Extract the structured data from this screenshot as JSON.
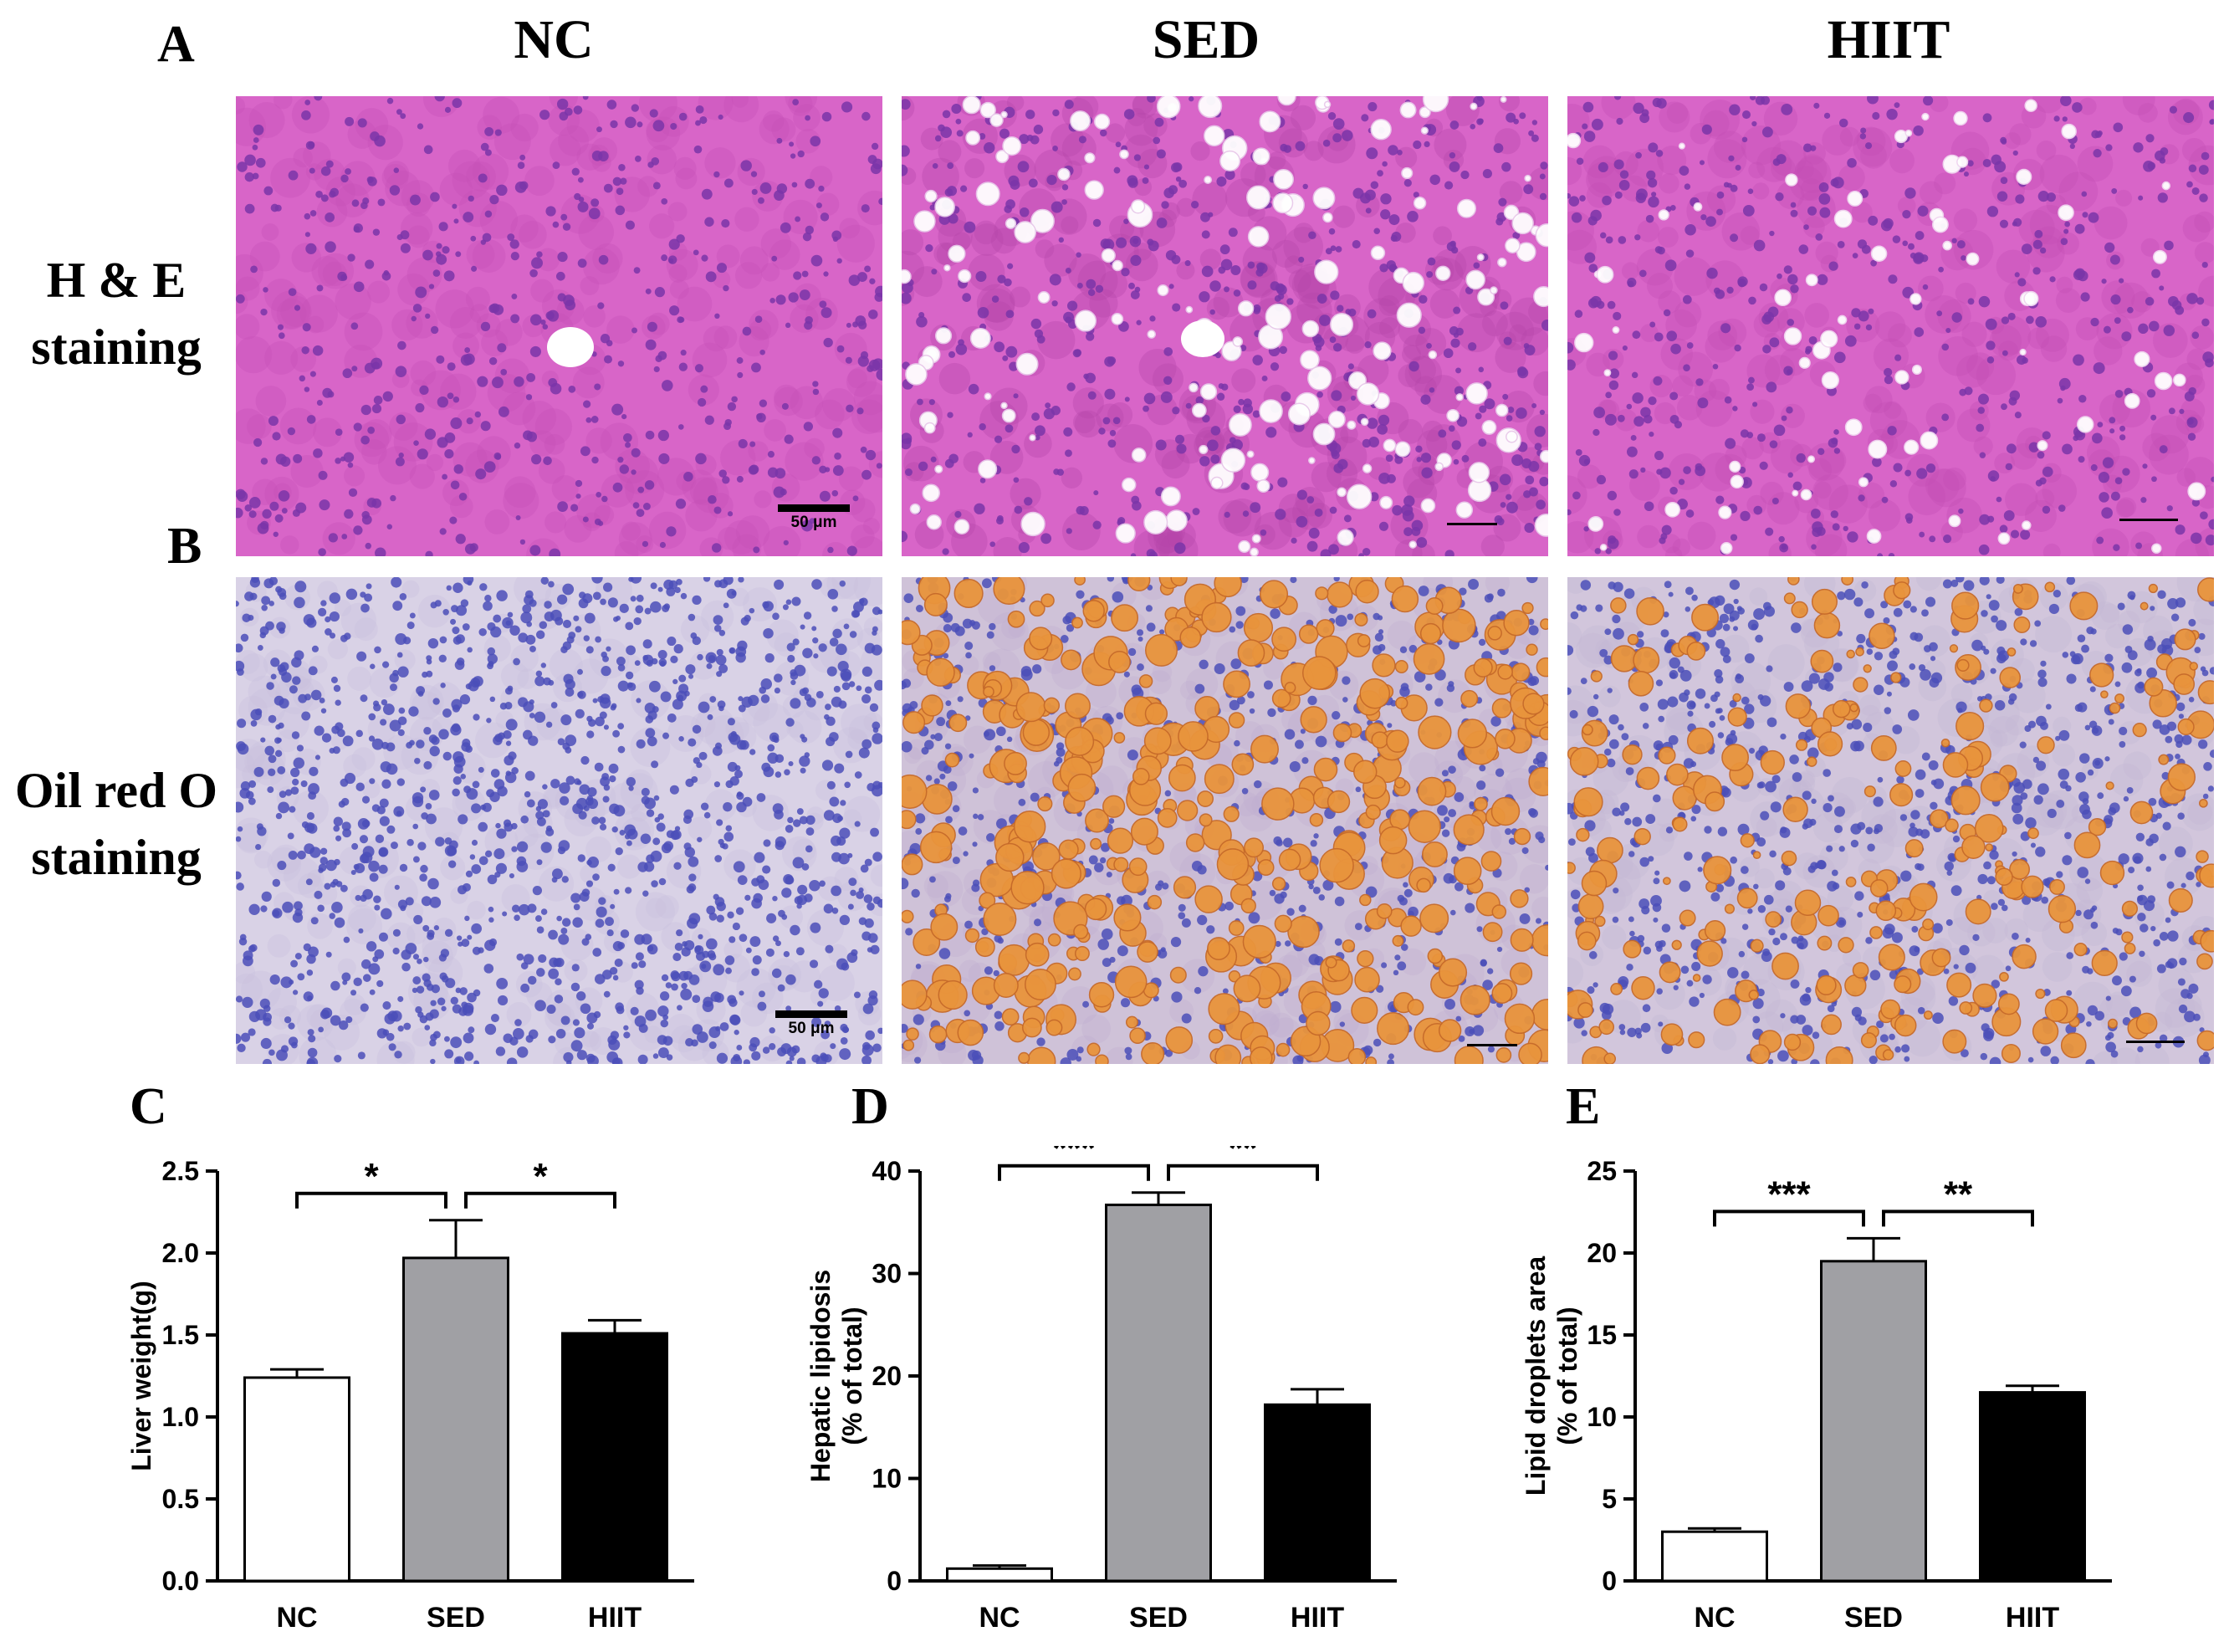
{
  "figure": {
    "panel_letters": {
      "A": "A",
      "B": "B",
      "C": "C",
      "D": "D",
      "E": "E"
    },
    "column_headers": [
      "NC",
      "SED",
      "HIIT"
    ],
    "row_labels": {
      "he": [
        "H & E",
        "staining"
      ],
      "oro": [
        "Oil red O",
        "staining"
      ]
    },
    "scale_bar_label": "50 μm",
    "colors": {
      "he_background": "#d865c8",
      "he_nuclei": "#7a35a8",
      "oro_background": "#d9d2e6",
      "oro_nuclei": "#4b4fb8",
      "lipid_droplet": "#e9943c",
      "bar_nc": "#ffffff",
      "bar_sed": "#a0a0a4",
      "bar_hiit": "#000000"
    }
  },
  "chart_data": [
    {
      "panel": "C",
      "type": "bar",
      "categories": [
        "NC",
        "SED",
        "HIIT"
      ],
      "values": [
        1.24,
        1.97,
        1.51
      ],
      "errors": [
        0.05,
        0.23,
        0.08
      ],
      "ylabel": "Liver weight(g)",
      "ylim": [
        0,
        2.5
      ],
      "yticks": [
        "0.0",
        "0.5",
        "1.0",
        "1.5",
        "2.0",
        "2.5"
      ],
      "significance": [
        {
          "from": "NC",
          "to": "SED",
          "label": "*"
        },
        {
          "from": "SED",
          "to": "HIIT",
          "label": "*"
        }
      ]
    },
    {
      "panel": "D",
      "type": "bar",
      "categories": [
        "NC",
        "SED",
        "HIIT"
      ],
      "values": [
        1.2,
        36.7,
        17.2
      ],
      "errors": [
        0.3,
        1.2,
        1.5
      ],
      "ylabel": [
        "Hepatic lipidosis",
        "(% of total)"
      ],
      "ylim": [
        0,
        40
      ],
      "yticks": [
        "0",
        "10",
        "20",
        "30",
        "40"
      ],
      "significance": [
        {
          "from": "NC",
          "to": "SED",
          "label": "***"
        },
        {
          "from": "SED",
          "to": "HIIT",
          "label": "**"
        }
      ]
    },
    {
      "panel": "E",
      "type": "bar",
      "categories": [
        "NC",
        "SED",
        "HIIT"
      ],
      "values": [
        3.0,
        19.5,
        11.5
      ],
      "errors": [
        0.2,
        1.4,
        0.4
      ],
      "ylabel": [
        "Lipid droplets area",
        "(% of total)"
      ],
      "ylim": [
        0,
        25
      ],
      "yticks": [
        "0",
        "5",
        "10",
        "15",
        "20",
        "25"
      ],
      "significance": [
        {
          "from": "NC",
          "to": "SED",
          "label": "***"
        },
        {
          "from": "SED",
          "to": "HIIT",
          "label": "**"
        }
      ]
    }
  ]
}
